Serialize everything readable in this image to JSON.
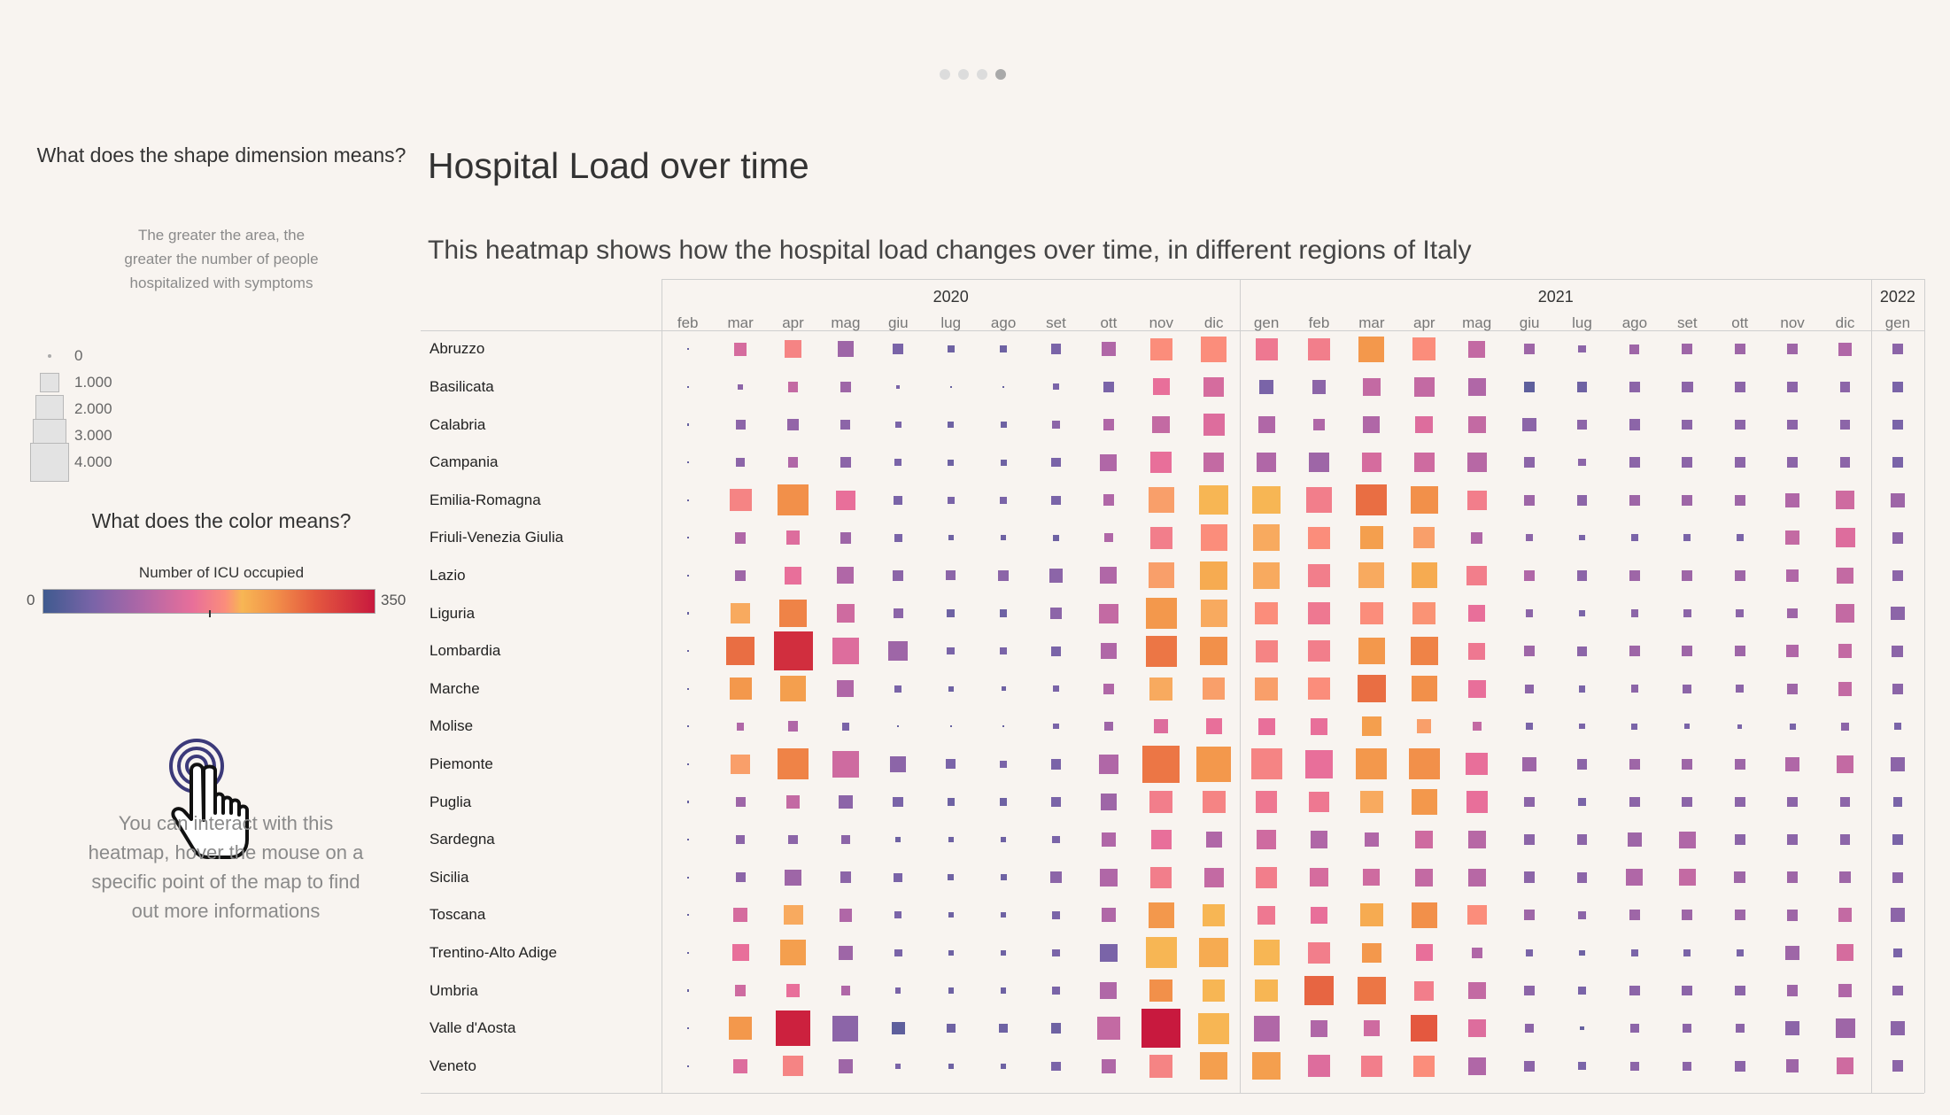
{
  "page_indicator": {
    "count": 4,
    "active": 4
  },
  "legend": {
    "size_title": "What does the shape dimension means?",
    "size_desc": "The greater the area, the greater the number of people hospitalized with symptoms",
    "size_items": [
      {
        "label": "0",
        "value": 0
      },
      {
        "label": "1.000",
        "value": 1000
      },
      {
        "label": "2.000",
        "value": 2000
      },
      {
        "label": "3.000",
        "value": 3000
      },
      {
        "label": "4.000",
        "value": 4000
      }
    ],
    "color_title": "What does the color means?",
    "color_label": "Number of ICU occupied",
    "color_min": "0",
    "color_max": "350",
    "interact_desc": "You can interact with this heatmap, hover the mouse on a specific point of the map to find out more informations",
    "hand_icon": "pointer-hand-icon"
  },
  "title": "Hospital Load over time",
  "subtitle": "This heatmap shows how the hospital load changes over time, in different regions of Italy",
  "chart_data": {
    "type": "heatmap",
    "years": [
      {
        "label": "2020",
        "months": [
          "feb",
          "mar",
          "apr",
          "mag",
          "giu",
          "lug",
          "ago",
          "set",
          "ott",
          "nov",
          "dic"
        ]
      },
      {
        "label": "2021",
        "months": [
          "gen",
          "feb",
          "mar",
          "apr",
          "mag",
          "giu",
          "lug",
          "ago",
          "set",
          "ott",
          "nov",
          "dic"
        ]
      },
      {
        "label": "2022",
        "months": [
          "gen"
        ]
      }
    ],
    "months": [
      "feb",
      "mar",
      "apr",
      "mag",
      "giu",
      "lug",
      "ago",
      "set",
      "ott",
      "nov",
      "dic",
      "gen",
      "feb",
      "mar",
      "apr",
      "mag",
      "giu",
      "lug",
      "ago",
      "set",
      "ott",
      "nov",
      "dic",
      "gen"
    ],
    "regions": [
      "Abruzzo",
      "Basilicata",
      "Calabria",
      "Campania",
      "Emilia-Romagna",
      "Friuli-Venezia Giulia",
      "Lazio",
      "Liguria",
      "Lombardia",
      "Marche",
      "Molise",
      "Piemonte",
      "Puglia",
      "Sardegna",
      "Sicilia",
      "Toscana",
      "Trentino-Alto Adige",
      "Umbria",
      "Valle d'Aosta",
      "Veneto"
    ],
    "size_label": "People hospitalized with symptoms",
    "size_range": [
      0,
      4000
    ],
    "color_label": "Number of ICU occupied",
    "color_range": [
      0,
      350
    ],
    "size_level": [
      [
        0.05,
        0.33,
        0.45,
        0.41,
        0.27,
        0.19,
        0.19,
        0.27,
        0.36,
        0.57,
        0.66,
        0.57,
        0.56,
        0.66,
        0.59,
        0.43,
        0.27,
        0.19,
        0.25,
        0.27,
        0.27,
        0.27,
        0.34,
        0.27
      ],
      [
        0.05,
        0.14,
        0.27,
        0.27,
        0.1,
        0.05,
        0.05,
        0.16,
        0.29,
        0.43,
        0.51,
        0.36,
        0.36,
        0.45,
        0.51,
        0.45,
        0.27,
        0.27,
        0.27,
        0.29,
        0.27,
        0.27,
        0.27,
        0.27
      ],
      [
        0.05,
        0.25,
        0.29,
        0.25,
        0.16,
        0.16,
        0.16,
        0.2,
        0.29,
        0.45,
        0.55,
        0.43,
        0.29,
        0.43,
        0.45,
        0.45,
        0.36,
        0.27,
        0.29,
        0.27,
        0.27,
        0.27,
        0.27,
        0.27
      ],
      [
        0.05,
        0.23,
        0.27,
        0.27,
        0.18,
        0.16,
        0.16,
        0.23,
        0.43,
        0.55,
        0.51,
        0.51,
        0.51,
        0.51,
        0.51,
        0.5,
        0.27,
        0.2,
        0.27,
        0.27,
        0.27,
        0.27,
        0.27,
        0.27
      ],
      [
        0.05,
        0.57,
        0.8,
        0.5,
        0.23,
        0.19,
        0.19,
        0.23,
        0.29,
        0.66,
        0.75,
        0.71,
        0.66,
        0.8,
        0.71,
        0.5,
        0.27,
        0.27,
        0.27,
        0.27,
        0.27,
        0.36,
        0.47,
        0.36
      ],
      [
        0.05,
        0.29,
        0.36,
        0.29,
        0.2,
        0.14,
        0.14,
        0.16,
        0.23,
        0.57,
        0.69,
        0.69,
        0.57,
        0.59,
        0.55,
        0.29,
        0.18,
        0.14,
        0.18,
        0.18,
        0.18,
        0.36,
        0.5,
        0.29
      ],
      [
        0.05,
        0.29,
        0.45,
        0.43,
        0.27,
        0.25,
        0.29,
        0.36,
        0.43,
        0.66,
        0.71,
        0.69,
        0.59,
        0.66,
        0.66,
        0.51,
        0.29,
        0.27,
        0.27,
        0.27,
        0.27,
        0.33,
        0.41,
        0.29
      ],
      [
        0.05,
        0.51,
        0.71,
        0.47,
        0.25,
        0.2,
        0.2,
        0.29,
        0.5,
        0.8,
        0.69,
        0.59,
        0.57,
        0.59,
        0.59,
        0.43,
        0.2,
        0.14,
        0.2,
        0.2,
        0.2,
        0.27,
        0.47,
        0.36
      ],
      [
        0.05,
        0.71,
        1.0,
        0.69,
        0.5,
        0.2,
        0.2,
        0.25,
        0.41,
        0.8,
        0.71,
        0.57,
        0.55,
        0.69,
        0.71,
        0.43,
        0.27,
        0.25,
        0.27,
        0.27,
        0.27,
        0.33,
        0.36,
        0.3
      ],
      [
        0.05,
        0.57,
        0.66,
        0.43,
        0.18,
        0.14,
        0.11,
        0.16,
        0.27,
        0.59,
        0.57,
        0.59,
        0.57,
        0.71,
        0.66,
        0.45,
        0.23,
        0.18,
        0.2,
        0.23,
        0.2,
        0.27,
        0.36,
        0.27
      ],
      [
        0.05,
        0.2,
        0.27,
        0.2,
        0.05,
        0.05,
        0.05,
        0.14,
        0.23,
        0.36,
        0.41,
        0.43,
        0.43,
        0.5,
        0.36,
        0.23,
        0.18,
        0.14,
        0.16,
        0.14,
        0.11,
        0.16,
        0.2,
        0.18
      ],
      [
        0.05,
        0.51,
        0.8,
        0.69,
        0.41,
        0.25,
        0.19,
        0.27,
        0.5,
        0.95,
        0.9,
        0.8,
        0.71,
        0.8,
        0.8,
        0.57,
        0.36,
        0.27,
        0.27,
        0.27,
        0.27,
        0.36,
        0.45,
        0.36
      ],
      [
        0.05,
        0.25,
        0.36,
        0.36,
        0.27,
        0.19,
        0.19,
        0.27,
        0.41,
        0.59,
        0.59,
        0.55,
        0.51,
        0.59,
        0.66,
        0.55,
        0.27,
        0.19,
        0.27,
        0.27,
        0.27,
        0.27,
        0.27,
        0.23
      ],
      [
        0.05,
        0.23,
        0.23,
        0.23,
        0.14,
        0.14,
        0.14,
        0.2,
        0.36,
        0.51,
        0.41,
        0.51,
        0.45,
        0.36,
        0.45,
        0.45,
        0.29,
        0.27,
        0.36,
        0.43,
        0.27,
        0.27,
        0.27,
        0.27
      ],
      [
        0.05,
        0.25,
        0.41,
        0.29,
        0.23,
        0.16,
        0.16,
        0.29,
        0.45,
        0.55,
        0.5,
        0.55,
        0.47,
        0.43,
        0.45,
        0.45,
        0.29,
        0.27,
        0.43,
        0.43,
        0.29,
        0.29,
        0.29,
        0.27
      ],
      [
        0.05,
        0.36,
        0.5,
        0.33,
        0.19,
        0.14,
        0.14,
        0.2,
        0.36,
        0.66,
        0.57,
        0.47,
        0.43,
        0.59,
        0.66,
        0.5,
        0.27,
        0.2,
        0.27,
        0.27,
        0.27,
        0.29,
        0.36,
        0.36
      ],
      [
        0.05,
        0.43,
        0.66,
        0.36,
        0.2,
        0.14,
        0.14,
        0.2,
        0.45,
        0.8,
        0.75,
        0.66,
        0.55,
        0.51,
        0.43,
        0.27,
        0.18,
        0.14,
        0.18,
        0.18,
        0.18,
        0.36,
        0.43,
        0.23
      ],
      [
        0.05,
        0.29,
        0.36,
        0.23,
        0.14,
        0.14,
        0.14,
        0.2,
        0.43,
        0.59,
        0.57,
        0.59,
        0.75,
        0.71,
        0.5,
        0.45,
        0.27,
        0.2,
        0.27,
        0.27,
        0.27,
        0.29,
        0.33,
        0.27
      ],
      [
        0.05,
        0.59,
        0.9,
        0.66,
        0.33,
        0.23,
        0.23,
        0.27,
        0.59,
        1.0,
        0.8,
        0.66,
        0.43,
        0.41,
        0.69,
        0.45,
        0.23,
        0.1,
        0.23,
        0.23,
        0.23,
        0.36,
        0.5,
        0.36
      ],
      [
        0.05,
        0.36,
        0.51,
        0.36,
        0.14,
        0.14,
        0.14,
        0.23,
        0.36,
        0.59,
        0.71,
        0.71,
        0.57,
        0.55,
        0.55,
        0.45,
        0.27,
        0.2,
        0.23,
        0.23,
        0.27,
        0.33,
        0.43,
        0.29
      ]
    ],
    "color_level": [
      [
        0.1,
        0.4,
        0.52,
        0.25,
        0.15,
        0.12,
        0.12,
        0.15,
        0.3,
        0.55,
        0.55,
        0.48,
        0.5,
        0.7,
        0.55,
        0.35,
        0.25,
        0.2,
        0.25,
        0.25,
        0.25,
        0.25,
        0.3,
        0.2
      ],
      [
        0.1,
        0.2,
        0.35,
        0.25,
        0.15,
        0.1,
        0.1,
        0.15,
        0.15,
        0.45,
        0.4,
        0.15,
        0.2,
        0.35,
        0.35,
        0.3,
        0.08,
        0.12,
        0.2,
        0.2,
        0.2,
        0.2,
        0.2,
        0.15
      ],
      [
        0.1,
        0.2,
        0.22,
        0.2,
        0.15,
        0.12,
        0.12,
        0.2,
        0.3,
        0.35,
        0.42,
        0.3,
        0.3,
        0.3,
        0.42,
        0.35,
        0.2,
        0.2,
        0.2,
        0.2,
        0.2,
        0.2,
        0.2,
        0.15
      ],
      [
        0.1,
        0.2,
        0.3,
        0.2,
        0.15,
        0.12,
        0.12,
        0.15,
        0.3,
        0.45,
        0.35,
        0.3,
        0.25,
        0.4,
        0.38,
        0.32,
        0.2,
        0.2,
        0.2,
        0.2,
        0.2,
        0.2,
        0.2,
        0.15
      ],
      [
        0.1,
        0.52,
        0.72,
        0.45,
        0.15,
        0.15,
        0.15,
        0.15,
        0.3,
        0.58,
        0.62,
        0.62,
        0.5,
        0.8,
        0.72,
        0.5,
        0.25,
        0.2,
        0.25,
        0.25,
        0.25,
        0.3,
        0.38,
        0.25
      ],
      [
        0.1,
        0.3,
        0.42,
        0.25,
        0.15,
        0.12,
        0.12,
        0.12,
        0.3,
        0.5,
        0.55,
        0.6,
        0.55,
        0.68,
        0.58,
        0.3,
        0.2,
        0.15,
        0.15,
        0.15,
        0.15,
        0.35,
        0.42,
        0.2
      ],
      [
        0.1,
        0.25,
        0.45,
        0.3,
        0.2,
        0.2,
        0.2,
        0.2,
        0.3,
        0.58,
        0.65,
        0.6,
        0.5,
        0.6,
        0.65,
        0.5,
        0.3,
        0.2,
        0.25,
        0.25,
        0.25,
        0.3,
        0.35,
        0.2
      ],
      [
        0.1,
        0.6,
        0.75,
        0.38,
        0.2,
        0.12,
        0.12,
        0.2,
        0.35,
        0.7,
        0.6,
        0.55,
        0.48,
        0.55,
        0.56,
        0.45,
        0.2,
        0.15,
        0.2,
        0.2,
        0.2,
        0.25,
        0.35,
        0.2
      ],
      [
        0.1,
        0.8,
        0.95,
        0.42,
        0.25,
        0.15,
        0.15,
        0.15,
        0.3,
        0.78,
        0.72,
        0.52,
        0.5,
        0.7,
        0.75,
        0.48,
        0.25,
        0.2,
        0.25,
        0.25,
        0.25,
        0.3,
        0.35,
        0.2
      ],
      [
        0.1,
        0.7,
        0.68,
        0.3,
        0.15,
        0.12,
        0.12,
        0.15,
        0.3,
        0.6,
        0.58,
        0.58,
        0.55,
        0.8,
        0.72,
        0.45,
        0.2,
        0.15,
        0.2,
        0.2,
        0.2,
        0.25,
        0.35,
        0.2
      ],
      [
        0.1,
        0.3,
        0.3,
        0.15,
        0.1,
        0.1,
        0.1,
        0.15,
        0.25,
        0.42,
        0.45,
        0.45,
        0.45,
        0.68,
        0.58,
        0.35,
        0.15,
        0.15,
        0.15,
        0.15,
        0.15,
        0.15,
        0.2,
        0.15
      ],
      [
        0.1,
        0.58,
        0.75,
        0.38,
        0.2,
        0.15,
        0.15,
        0.15,
        0.3,
        0.78,
        0.7,
        0.52,
        0.45,
        0.7,
        0.72,
        0.45,
        0.25,
        0.2,
        0.25,
        0.25,
        0.25,
        0.3,
        0.35,
        0.2
      ],
      [
        0.1,
        0.25,
        0.35,
        0.2,
        0.15,
        0.12,
        0.12,
        0.15,
        0.25,
        0.5,
        0.52,
        0.48,
        0.48,
        0.6,
        0.7,
        0.45,
        0.2,
        0.15,
        0.2,
        0.2,
        0.2,
        0.2,
        0.2,
        0.15
      ],
      [
        0.1,
        0.2,
        0.2,
        0.2,
        0.12,
        0.12,
        0.12,
        0.15,
        0.3,
        0.45,
        0.3,
        0.38,
        0.3,
        0.3,
        0.38,
        0.32,
        0.2,
        0.2,
        0.25,
        0.3,
        0.2,
        0.2,
        0.2,
        0.15
      ],
      [
        0.1,
        0.2,
        0.25,
        0.2,
        0.15,
        0.12,
        0.12,
        0.2,
        0.3,
        0.5,
        0.35,
        0.5,
        0.4,
        0.38,
        0.35,
        0.32,
        0.2,
        0.2,
        0.3,
        0.35,
        0.25,
        0.25,
        0.25,
        0.2
      ],
      [
        0.1,
        0.4,
        0.6,
        0.3,
        0.15,
        0.12,
        0.12,
        0.15,
        0.3,
        0.7,
        0.62,
        0.48,
        0.45,
        0.65,
        0.72,
        0.55,
        0.25,
        0.2,
        0.25,
        0.25,
        0.25,
        0.25,
        0.35,
        0.2
      ],
      [
        0.1,
        0.45,
        0.68,
        0.25,
        0.15,
        0.12,
        0.12,
        0.15,
        0.15,
        0.62,
        0.65,
        0.62,
        0.5,
        0.7,
        0.45,
        0.3,
        0.15,
        0.12,
        0.15,
        0.15,
        0.15,
        0.25,
        0.4,
        0.15
      ],
      [
        0.1,
        0.38,
        0.45,
        0.3,
        0.15,
        0.12,
        0.12,
        0.15,
        0.3,
        0.72,
        0.62,
        0.62,
        0.82,
        0.78,
        0.5,
        0.35,
        0.2,
        0.15,
        0.2,
        0.2,
        0.2,
        0.25,
        0.3,
        0.2
      ],
      [
        0.1,
        0.7,
        0.98,
        0.2,
        0.08,
        0.12,
        0.12,
        0.12,
        0.35,
        1.0,
        0.62,
        0.3,
        0.3,
        0.38,
        0.85,
        0.42,
        0.2,
        0.1,
        0.2,
        0.2,
        0.2,
        0.2,
        0.25,
        0.2
      ],
      [
        0.1,
        0.42,
        0.52,
        0.25,
        0.15,
        0.12,
        0.12,
        0.15,
        0.3,
        0.52,
        0.68,
        0.68,
        0.42,
        0.5,
        0.55,
        0.3,
        0.2,
        0.15,
        0.2,
        0.2,
        0.2,
        0.25,
        0.38,
        0.2
      ]
    ]
  }
}
